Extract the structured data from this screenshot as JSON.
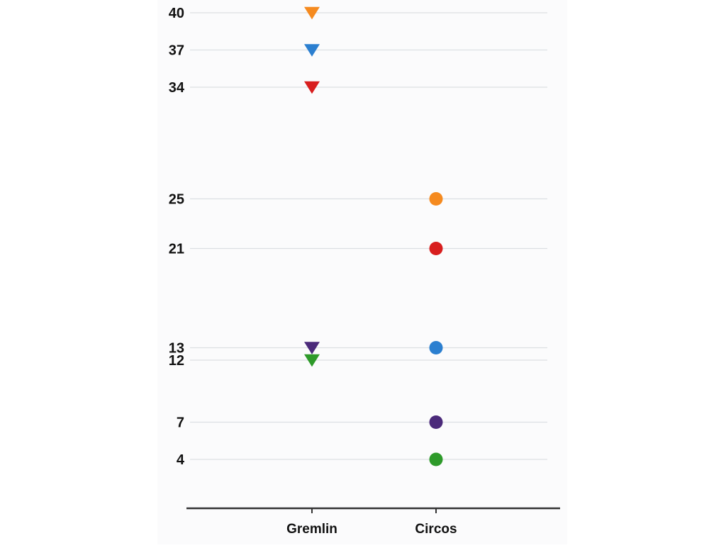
{
  "chart_data": {
    "type": "scatter",
    "categories": [
      "Gremlin",
      "Circos"
    ],
    "yticks": [
      4,
      7,
      12,
      13,
      21,
      25,
      34,
      37,
      40
    ],
    "series": [
      {
        "color": "#2e9a2a",
        "values": [
          12,
          4
        ]
      },
      {
        "color": "#4b2a7a",
        "values": [
          13,
          7
        ]
      },
      {
        "color": "#d81e1e",
        "values": [
          34,
          21
        ]
      },
      {
        "color": "#2b7fd0",
        "values": [
          37,
          13
        ]
      },
      {
        "color": "#f58a1f",
        "values": [
          40,
          25
        ]
      }
    ],
    "markers": {
      "Gremlin": "triangle-down",
      "Circos": "circle"
    },
    "grid": true,
    "legend": "none"
  }
}
